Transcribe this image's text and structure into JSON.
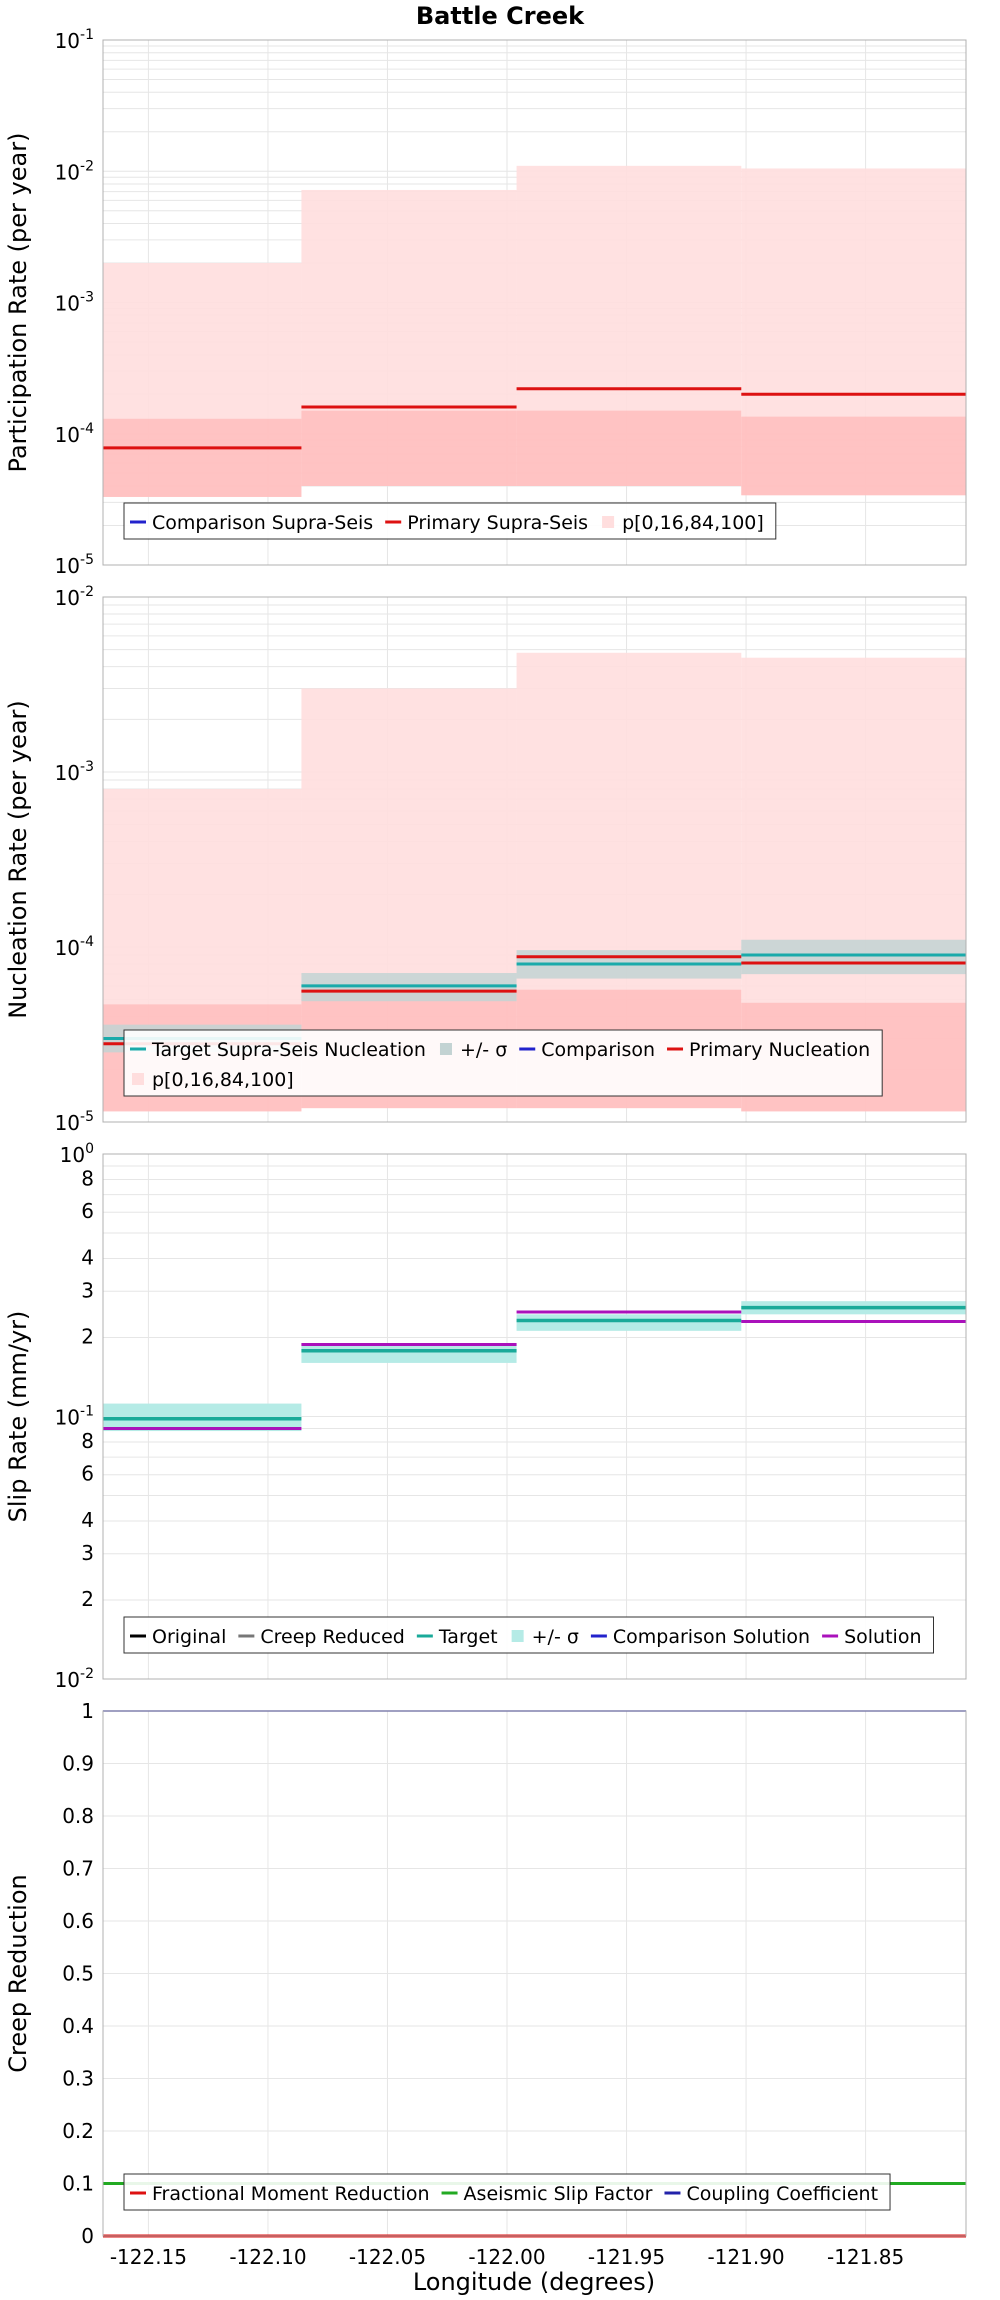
{
  "chart_data": [
    {
      "type": "line",
      "title": "Battle Creek",
      "ylabel": "Participation Rate (per year)",
      "yscale": "log",
      "ylim": [
        1e-05,
        0.1
      ],
      "ytick_labels": [
        {
          "value": 1e-05,
          "base": "10",
          "exp": "-5"
        },
        {
          "value": 0.0001,
          "base": "10",
          "exp": "-4"
        },
        {
          "value": 0.001,
          "base": "10",
          "exp": "-3"
        },
        {
          "value": 0.01,
          "base": "10",
          "exp": "-2"
        },
        {
          "value": 0.1,
          "base": "10",
          "exp": "-1"
        }
      ],
      "grid": true,
      "legend_position": "bottom-left",
      "legend_rows": [
        [
          "Comparison Supra-Seis",
          "Primary Supra-Seis",
          "p[0,16,84,100]"
        ]
      ],
      "bins": [
        {
          "x": [
            -122.169,
            -122.086
          ],
          "primary": 7.8e-05,
          "p0": 3.3e-05,
          "p16": 3.3e-05,
          "p84": 0.00013,
          "p100": 0.002
        },
        {
          "x": [
            -122.086,
            -121.996
          ],
          "primary": 0.00016,
          "p0": 4e-05,
          "p16": 4e-05,
          "p84": 0.00015,
          "p100": 0.0072
        },
        {
          "x": [
            -121.996,
            -121.902
          ],
          "primary": 0.00022,
          "p0": 4e-05,
          "p16": 4e-05,
          "p84": 0.00015,
          "p100": 0.011
        },
        {
          "x": [
            -121.902,
            -121.808
          ],
          "primary": 0.0002,
          "p0": 3.4e-05,
          "p16": 3.4e-05,
          "p84": 0.000135,
          "p100": 0.0105
        }
      ],
      "series": [
        {
          "name": "Comparison Supra-Seis",
          "color": "#2222cc"
        },
        {
          "name": "Primary Supra-Seis",
          "color": "#dd1111"
        },
        {
          "name": "p[0,16,84,100]",
          "color": "#ffdede"
        }
      ]
    },
    {
      "type": "line",
      "ylabel": "Nucleation Rate (per year)",
      "yscale": "log",
      "ylim": [
        1e-05,
        0.01
      ],
      "ytick_labels": [
        {
          "value": 1e-05,
          "base": "10",
          "exp": "-5"
        },
        {
          "value": 0.0001,
          "base": "10",
          "exp": "-4"
        },
        {
          "value": 0.001,
          "base": "10",
          "exp": "-3"
        },
        {
          "value": 0.01,
          "base": "10",
          "exp": "-2"
        }
      ],
      "grid": true,
      "legend_position": "bottom-left",
      "legend_rows": [
        [
          "Target Supra-Seis Nucleation",
          "+/- σ",
          "Comparison",
          "Primary Nucleation"
        ],
        [
          "p[0,16,84,100]"
        ]
      ],
      "bins": [
        {
          "x": [
            -122.169,
            -122.086
          ],
          "target": 3e-05,
          "target_lo": 2.5e-05,
          "target_hi": 3.6e-05,
          "primary": 2.8e-05,
          "p0": 1.15e-05,
          "p16": 1.15e-05,
          "p84": 4.7e-05,
          "p100": 0.0008
        },
        {
          "x": [
            -122.086,
            -121.996
          ],
          "target": 6e-05,
          "target_lo": 4.9e-05,
          "target_hi": 7.1e-05,
          "primary": 5.6e-05,
          "p0": 1.2e-05,
          "p16": 1.2e-05,
          "p84": 5.7e-05,
          "p100": 0.003
        },
        {
          "x": [
            -121.996,
            -121.902
          ],
          "target": 8e-05,
          "target_lo": 6.6e-05,
          "target_hi": 9.6e-05,
          "primary": 8.8e-05,
          "p0": 1.2e-05,
          "p16": 1.2e-05,
          "p84": 5.7e-05,
          "p100": 0.0048
        },
        {
          "x": [
            -121.902,
            -121.808
          ],
          "target": 9e-05,
          "target_lo": 7e-05,
          "target_hi": 0.00011,
          "primary": 8.1e-05,
          "p0": 1.15e-05,
          "p16": 1.15e-05,
          "p84": 4.8e-05,
          "p100": 0.0045
        }
      ],
      "series": [
        {
          "name": "Target Supra-Seis Nucleation",
          "color": "#1aaaaa"
        },
        {
          "name": "+/- σ",
          "color": "#c3d3d3"
        },
        {
          "name": "Comparison",
          "color": "#2222cc"
        },
        {
          "name": "Primary Nucleation",
          "color": "#dd1111"
        },
        {
          "name": "p[0,16,84,100]",
          "color": "#ffdede"
        }
      ]
    },
    {
      "type": "line",
      "ylabel": "Slip Rate (mm/yr)",
      "yscale": "log",
      "ylim": [
        0.01,
        1
      ],
      "ytick_labels": [
        {
          "value": 0.01,
          "base": "10",
          "exp": "-2"
        },
        {
          "value": 0.1,
          "base": "10",
          "exp": "-1"
        },
        {
          "value": 1,
          "base": "10",
          "exp": "0"
        }
      ],
      "minor_tick_labels": [
        {
          "value": 0.02,
          "label": "2"
        },
        {
          "value": 0.03,
          "label": "3"
        },
        {
          "value": 0.04,
          "label": "4"
        },
        {
          "value": 0.06,
          "label": "6"
        },
        {
          "value": 0.08,
          "label": "8"
        },
        {
          "value": 0.2,
          "label": "2"
        },
        {
          "value": 0.3,
          "label": "3"
        },
        {
          "value": 0.4,
          "label": "4"
        },
        {
          "value": 0.6,
          "label": "6"
        },
        {
          "value": 0.8,
          "label": "8"
        }
      ],
      "grid": true,
      "legend_position": "bottom-left",
      "legend_rows": [
        [
          "Original",
          "Creep Reduced",
          "Target",
          "+/- σ",
          "Comparison Solution",
          "Solution"
        ]
      ],
      "bins": [
        {
          "x": [
            -122.169,
            -122.086
          ],
          "target": 0.098,
          "target_lo": 0.088,
          "target_hi": 0.112,
          "solution": 0.09
        },
        {
          "x": [
            -122.086,
            -121.996
          ],
          "target": 0.178,
          "target_lo": 0.16,
          "target_hi": 0.19,
          "solution": 0.188
        },
        {
          "x": [
            -121.996,
            -121.902
          ],
          "target": 0.232,
          "target_lo": 0.212,
          "target_hi": 0.245,
          "solution": 0.25
        },
        {
          "x": [
            -121.902,
            -121.808
          ],
          "target": 0.26,
          "target_lo": 0.245,
          "target_hi": 0.275,
          "solution": 0.23
        }
      ],
      "series": [
        {
          "name": "Original",
          "color": "#000000"
        },
        {
          "name": "Creep Reduced",
          "color": "#777777"
        },
        {
          "name": "Target",
          "color": "#1aaa99"
        },
        {
          "name": "+/- σ",
          "color": "#b5ebe6"
        },
        {
          "name": "Comparison Solution",
          "color": "#2222cc"
        },
        {
          "name": "Solution",
          "color": "#aa11bb"
        }
      ]
    },
    {
      "type": "line",
      "ylabel": "Creep Reduction",
      "xlabel": "Longitude (degrees)",
      "yscale": "linear",
      "ylim": [
        0,
        1
      ],
      "yticks": [
        "0",
        "0.1",
        "0.2",
        "0.3",
        "0.4",
        "0.5",
        "0.6",
        "0.7",
        "0.8",
        "0.9",
        "1"
      ],
      "xlim": [
        -122.169,
        -121.808
      ],
      "xticks": [
        "-122.15",
        "-122.10",
        "-122.05",
        "-122.00",
        "-121.95",
        "-121.90",
        "-121.85"
      ],
      "grid": true,
      "legend_position": "bottom-left",
      "legend_rows": [
        [
          "Fractional Moment Reduction",
          "Aseismic Slip Factor",
          "Coupling Coefficient"
        ]
      ],
      "lines": [
        {
          "name": "Fractional Moment Reduction",
          "y": 0,
          "color": "#dd1111"
        },
        {
          "name": "Aseismic Slip Factor",
          "y": 0.1,
          "color": "#22aa22"
        },
        {
          "name": "Coupling Coefficient",
          "y": 1,
          "color": "#2222aa"
        }
      ],
      "series": [
        {
          "name": "Fractional Moment Reduction",
          "color": "#dd1111"
        },
        {
          "name": "Aseismic Slip Factor",
          "color": "#22aa22"
        },
        {
          "name": "Coupling Coefficient",
          "color": "#2222aa"
        }
      ]
    }
  ]
}
